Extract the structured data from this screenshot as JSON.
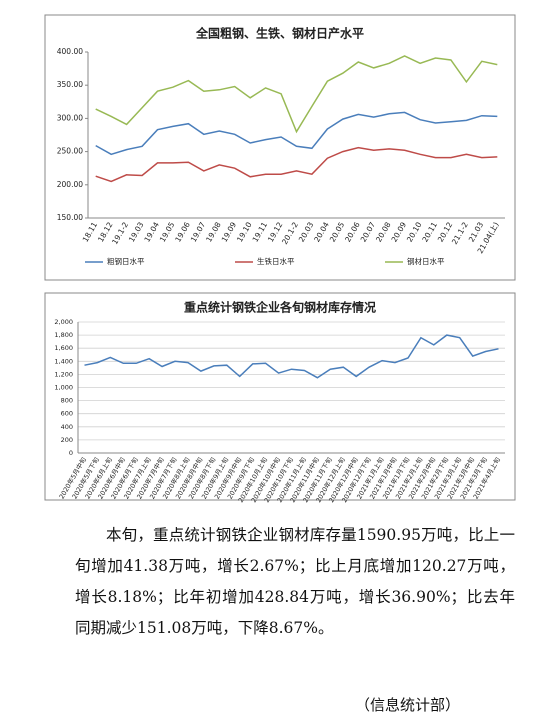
{
  "chart_data": [
    {
      "type": "line",
      "title": "全国粗钢、生铁、钢材日产水平",
      "categories": [
        "18.11",
        "18.12",
        "19.1-2",
        "19.03",
        "19.04",
        "19.05",
        "19.06",
        "19.07",
        "19.08",
        "19.09",
        "19.10",
        "19.11",
        "19.12",
        "20.1-2",
        "20.03",
        "20.04",
        "20.05",
        "20.06",
        "20.07",
        "20.08",
        "20.09",
        "20.10",
        "20.11",
        "20.12",
        "21.1-2",
        "21.03",
        "21.04(上)"
      ],
      "series": [
        {
          "name": "粗钢日水平",
          "color": "#4a7ebb",
          "values": [
            259,
            246,
            253,
            258,
            283,
            288,
            292,
            276,
            281,
            276,
            263,
            268,
            272,
            258,
            255,
            284,
            299,
            306,
            302,
            307,
            309,
            298,
            293,
            295,
            297,
            304,
            303
          ]
        },
        {
          "name": "生铁日水平",
          "color": "#be4b48",
          "values": [
            213,
            205,
            215,
            214,
            233,
            233,
            234,
            221,
            230,
            225,
            212,
            216,
            216,
            221,
            216,
            240,
            250,
            256,
            252,
            254,
            252,
            246,
            241,
            241,
            246,
            241,
            242
          ]
        },
        {
          "name": "钢材日水平",
          "color": "#98b954",
          "values": [
            314,
            303,
            291,
            316,
            341,
            347,
            357,
            341,
            343,
            348,
            331,
            346,
            337,
            280,
            318,
            356,
            368,
            385,
            376,
            383,
            394,
            383,
            391,
            388,
            355,
            386,
            381
          ]
        }
      ],
      "ylim": [
        150,
        400
      ],
      "yticks": [
        {
          "value": 150,
          "label": "150.00"
        },
        {
          "value": 200,
          "label": "200.00"
        },
        {
          "value": 250,
          "label": "250.00"
        },
        {
          "value": 300,
          "label": "300.00"
        },
        {
          "value": 350,
          "label": "350.00"
        },
        {
          "value": 400,
          "label": "400.00"
        }
      ],
      "grid": false,
      "legend": "bottom"
    },
    {
      "type": "line",
      "title": "重点统计钢铁企业各旬钢材库存情况",
      "categories": [
        "2020年5月中旬",
        "2020年5月下旬",
        "2020年6月上旬",
        "2020年6月中旬",
        "2020年6月下旬",
        "2020年7月上旬",
        "2020年7月中旬",
        "2020年7月下旬",
        "2020年8月上旬",
        "2020年8月中旬",
        "2020年8月下旬",
        "2020年9月上旬",
        "2020年9月中旬",
        "2020年9月下旬",
        "2020年10月上旬",
        "2020年10月中旬",
        "2020年10月下旬",
        "2020年11月上旬",
        "2020年11月中旬",
        "2020年11月下旬",
        "2020年12月上旬",
        "2020年12月中旬",
        "2020年12月下旬",
        "2021年1月上旬",
        "2021年1月中旬",
        "2021年1月下旬",
        "2021年2月上旬",
        "2021年2月中旬",
        "2021年2月下旬",
        "2021年3月上旬",
        "2021年3月中旬",
        "2021年3月下旬",
        "2021年4月上旬"
      ],
      "values": [
        1340,
        1380,
        1460,
        1370,
        1370,
        1440,
        1320,
        1400,
        1380,
        1250,
        1330,
        1340,
        1170,
        1360,
        1370,
        1220,
        1280,
        1260,
        1150,
        1280,
        1310,
        1170,
        1310,
        1410,
        1380,
        1450,
        1760,
        1650,
        1800,
        1760,
        1480,
        1550,
        1590.95
      ],
      "color": "#4a7ebb",
      "ylim": [
        0,
        2000
      ],
      "yticks": [
        0,
        {
          "value": 200,
          "label": "200"
        },
        {
          "value": 400,
          "label": "400"
        },
        {
          "value": 600,
          "label": "600"
        },
        {
          "value": 800,
          "label": "800"
        },
        {
          "value": 1000,
          "label": "1,000"
        },
        {
          "value": 1200,
          "label": "1,200"
        },
        {
          "value": 1400,
          "label": "1,400"
        },
        {
          "value": 1600,
          "label": "1,600"
        },
        {
          "value": 1800,
          "label": "1,800"
        },
        {
          "value": 2000,
          "label": "2,000"
        }
      ],
      "grid": true
    }
  ],
  "text": {
    "paragraph": "本旬，重点统计钢铁企业钢材库存量1590.95万吨，比上一旬增加41.38万吨，增长2.67%；比上月底增加120.27万吨，增长8.18%；比年初增加428.84万吨，增长36.90%；比去年同期减少151.08万吨，下降8.67%。",
    "source": "（信息统计部）"
  }
}
